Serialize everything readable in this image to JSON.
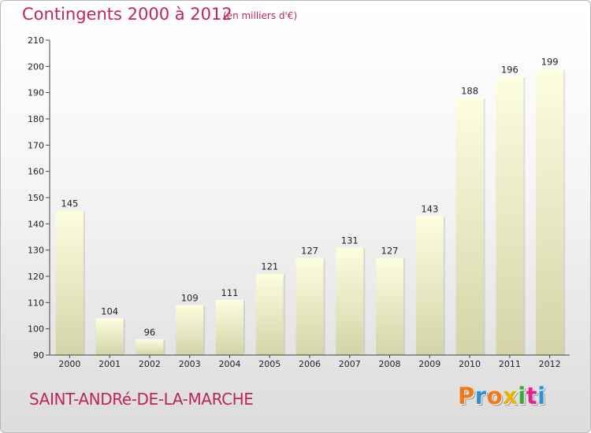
{
  "header": {
    "title": "Contingents 2000 à 2012",
    "unit": "(en milliers d'€)"
  },
  "footer": {
    "commune": "SAINT-ANDRé-DE-LA-MARCHE",
    "logo_letters": [
      "P",
      "r",
      "o",
      "x",
      "i",
      "t",
      "i"
    ]
  },
  "colors": {
    "title": "#c0245c",
    "bar_light": "#fdfde0",
    "bar_dark": "#d4d4a8",
    "logo": [
      "#f07a1a",
      "#2f8fd6",
      "#f07a1a",
      "#e7b200",
      "#3aa935",
      "#e0228a",
      "#2f8fd6"
    ]
  },
  "chart_data": {
    "type": "bar",
    "categories": [
      "2000",
      "2001",
      "2002",
      "2003",
      "2004",
      "2005",
      "2006",
      "2007",
      "2008",
      "2009",
      "2010",
      "2011",
      "2012"
    ],
    "values": [
      145,
      104,
      96,
      109,
      111,
      121,
      127,
      131,
      127,
      143,
      188,
      196,
      199
    ],
    "title": "Contingents 2000 à 2012",
    "ylim": [
      90,
      210
    ],
    "yticks": [
      90,
      100,
      110,
      120,
      130,
      140,
      150,
      160,
      170,
      180,
      190,
      200,
      210
    ],
    "grid": false,
    "data_labels": true
  }
}
